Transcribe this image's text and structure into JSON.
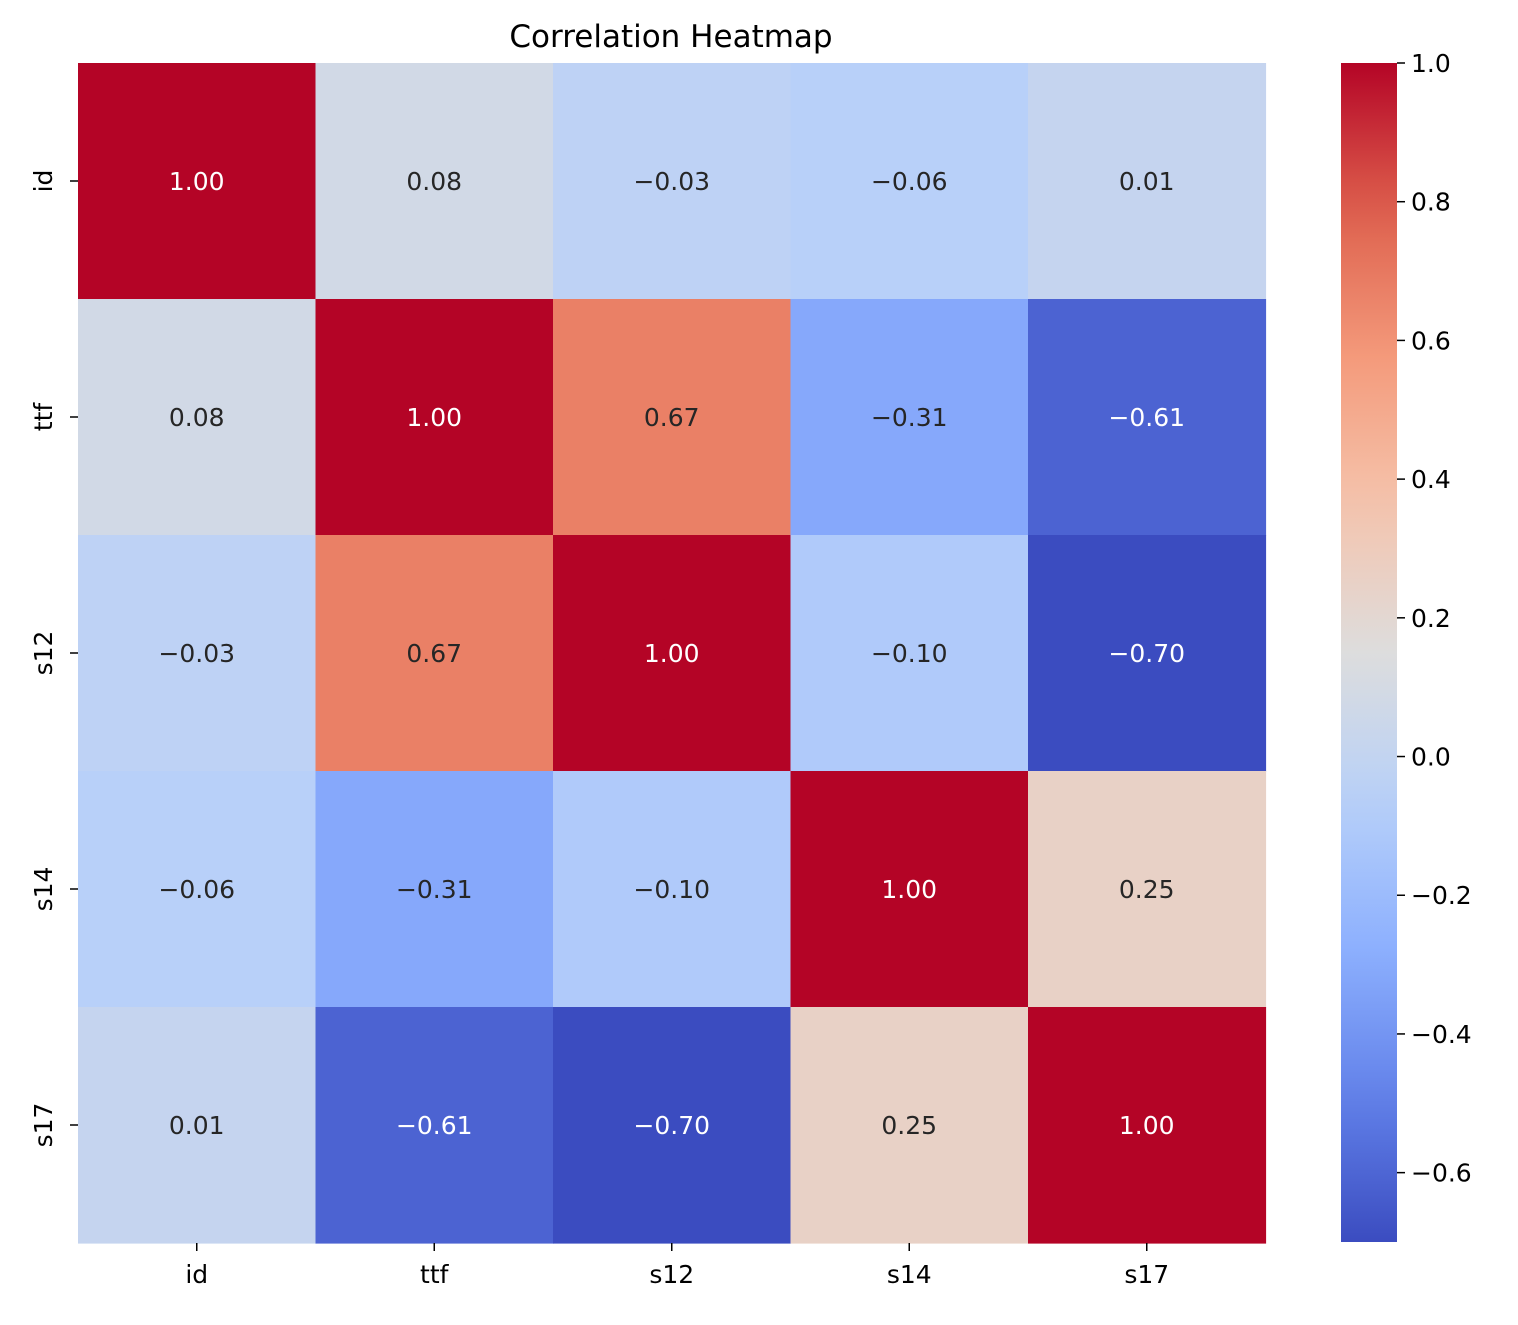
{
  "chart_data": {
    "type": "heatmap",
    "title": "Correlation Heatmap",
    "xlabel": "",
    "ylabel": "",
    "x_labels": [
      "id",
      "ttf",
      "s12",
      "s14",
      "s17"
    ],
    "y_labels": [
      "id",
      "ttf",
      "s12",
      "s14",
      "s17"
    ],
    "values": [
      [
        1.0,
        0.08,
        -0.03,
        -0.06,
        0.01
      ],
      [
        0.08,
        1.0,
        0.67,
        -0.31,
        -0.61
      ],
      [
        -0.03,
        0.67,
        1.0,
        -0.1,
        -0.7
      ],
      [
        -0.06,
        -0.31,
        -0.1,
        1.0,
        0.25
      ],
      [
        0.01,
        -0.61,
        -0.7,
        0.25,
        1.0
      ]
    ],
    "annotation_format": "2f",
    "colormap": "coolwarm",
    "colorbar": {
      "vmin": -0.7,
      "vmax": 1.0,
      "ticks": [
        1.0,
        0.8,
        0.6,
        0.4,
        0.2,
        0.0,
        -0.2,
        -0.4,
        -0.6
      ],
      "tick_labels": [
        "1.0",
        "0.8",
        "0.6",
        "0.4",
        "0.2",
        "0.0",
        "−0.2",
        "−0.4",
        "−0.6"
      ]
    },
    "grid": false,
    "legend": "colorbar-right"
  }
}
